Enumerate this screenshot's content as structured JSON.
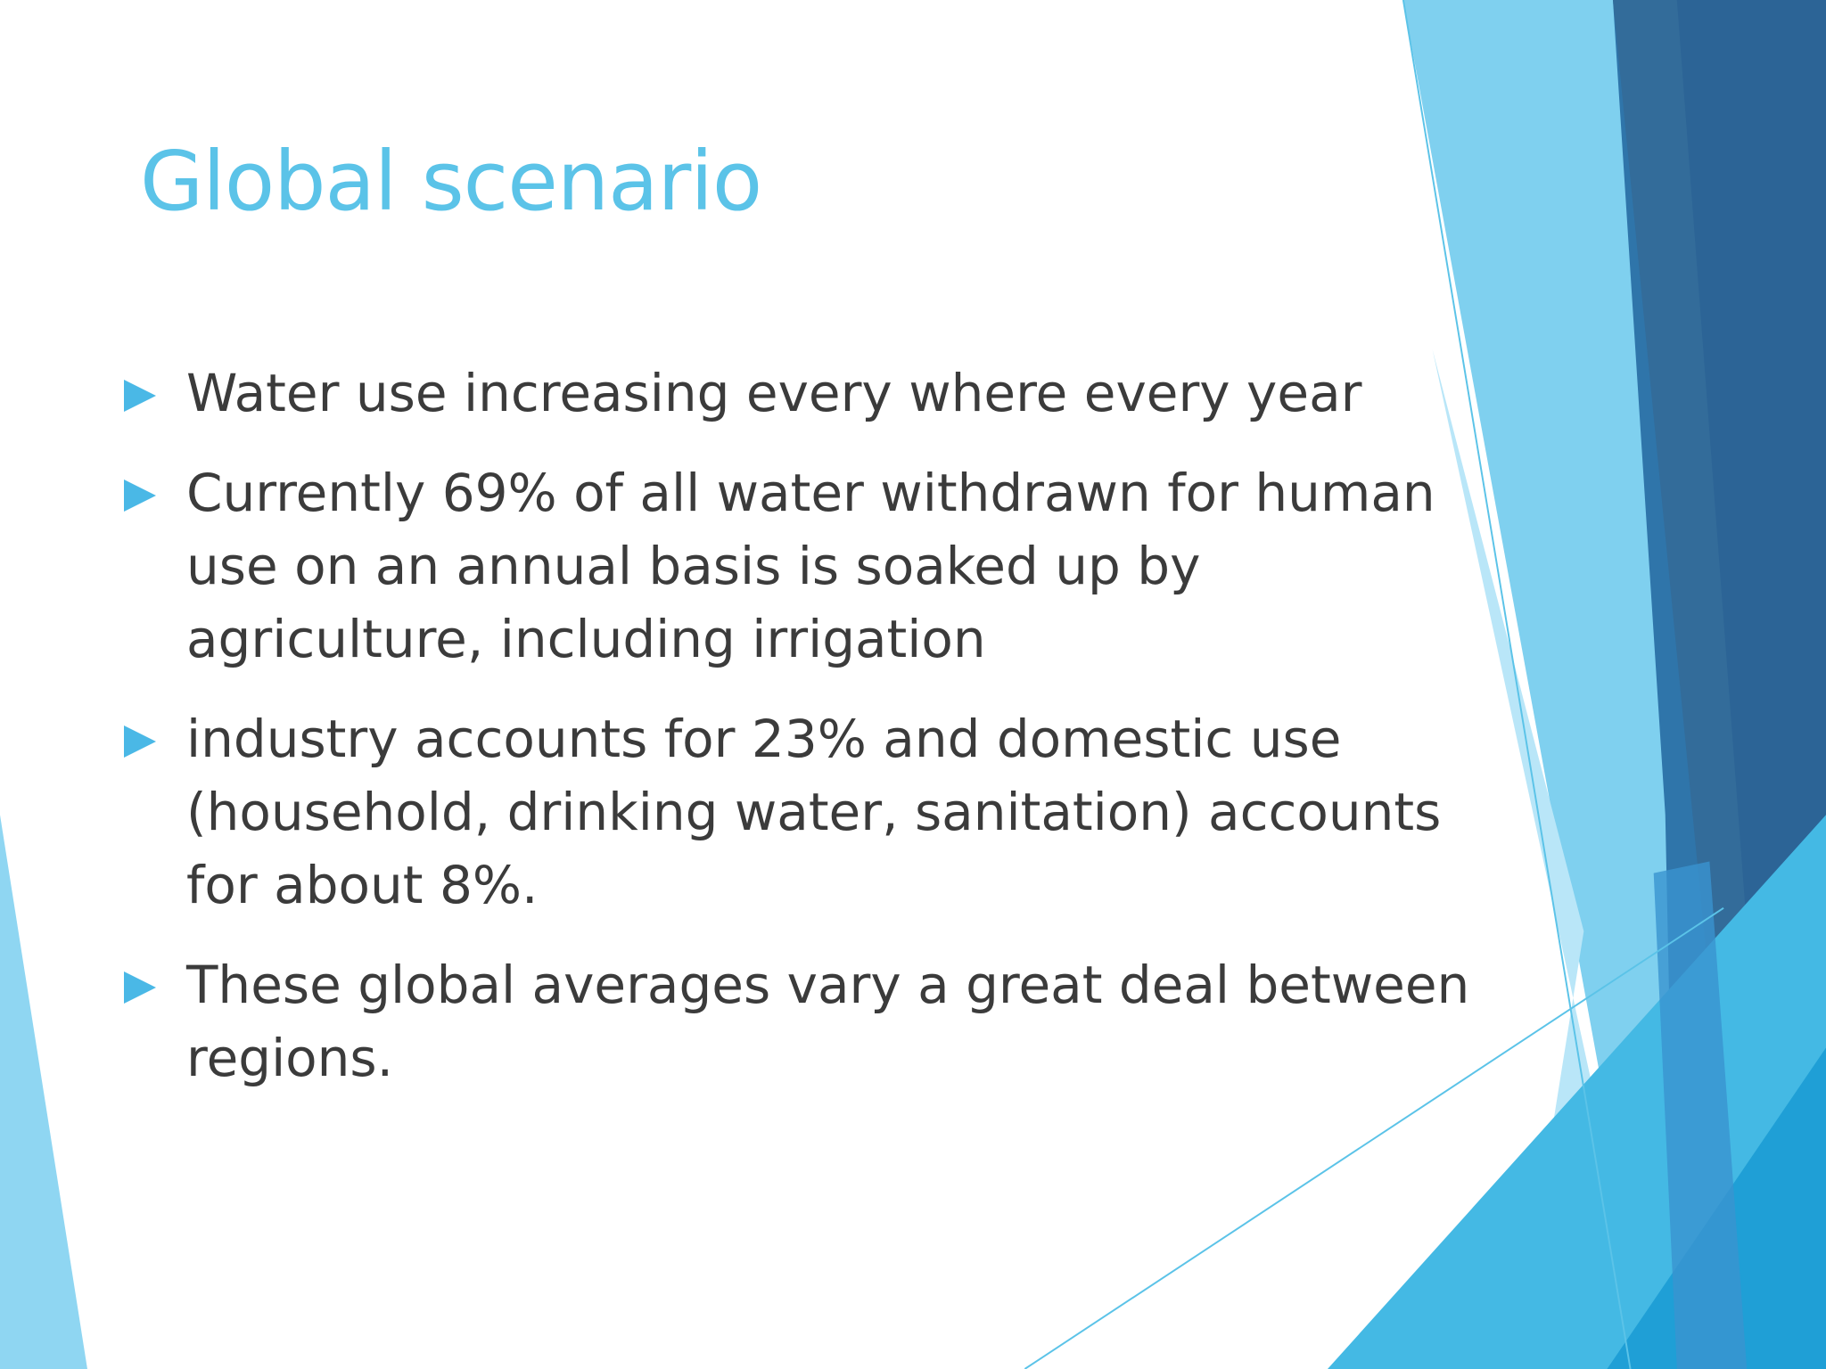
{
  "title": "Global scenario",
  "bullets": [
    "Water use increasing every where every year",
    "Currently 69% of all water withdrawn for human use on an annual basis is soaked up by agriculture, including irrigation",
    "industry accounts for 23% and domestic use (household, drinking water, sanitation) accounts for about 8%.",
    "These global averages vary a great deal between regions."
  ]
}
